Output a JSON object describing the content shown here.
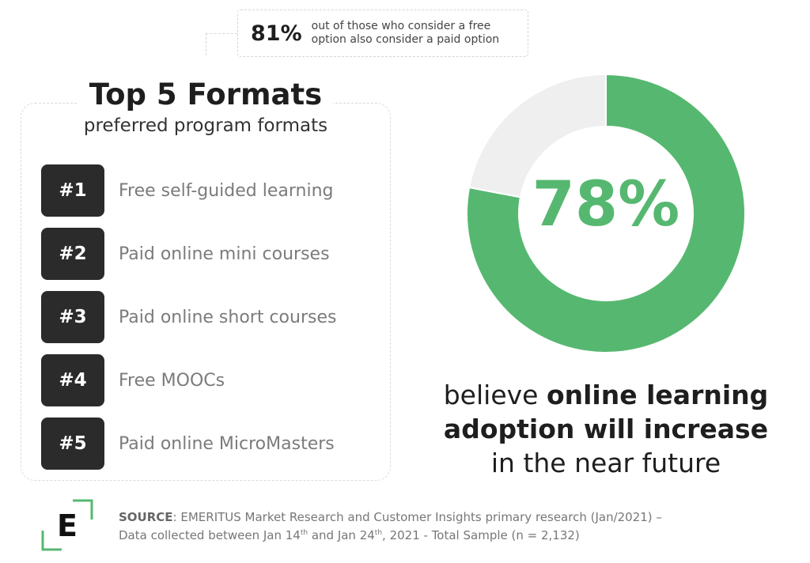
{
  "callout": {
    "percent": "81%",
    "text_line1": "out of those who consider a free",
    "text_line2": "option also consider a paid option"
  },
  "formats": {
    "title": "Top 5 Formats",
    "subtitle": "preferred program formats",
    "items": [
      {
        "rank": "#1",
        "label": "Free self-guided learning"
      },
      {
        "rank": "#2",
        "label": "Paid online mini courses"
      },
      {
        "rank": "#3",
        "label": "Paid online short courses"
      },
      {
        "rank": "#4",
        "label": "Free MOOCs"
      },
      {
        "rank": "#5",
        "label": "Paid online MicroMasters"
      }
    ]
  },
  "chart_data": {
    "type": "pie",
    "center_label": "78%",
    "slices": [
      {
        "value": 78,
        "color": "#56b870"
      },
      {
        "value": 22,
        "color": "#efefef"
      }
    ]
  },
  "caption": {
    "part1": "believe ",
    "bold1": "online learning",
    "bold2": "adoption will increase",
    "line3": "in the near future"
  },
  "footer": {
    "logo_letter": "E",
    "source_label": "SOURCE",
    "source_text1": ": EMERITUS Market Research and Customer Insights primary research (Jan/2021) –",
    "source_text2a": "Data collected between Jan 14",
    "sup1": "th",
    "source_text2b": " and Jan 24",
    "sup2": "th",
    "source_text2c": ", 2021 - Total Sample (n = 2,132)"
  },
  "colors": {
    "accent_green": "#56b870",
    "rank_badge": "#2b2b2b"
  }
}
